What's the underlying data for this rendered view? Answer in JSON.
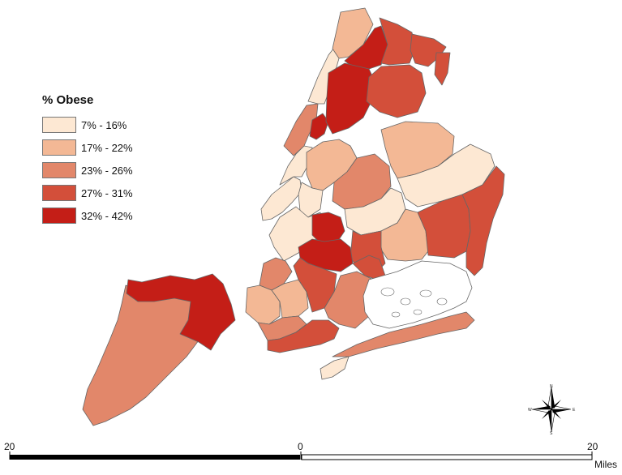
{
  "legend": {
    "title": "% Obese",
    "classes": [
      {
        "label": "7% - 16%",
        "color": "#fde8d3"
      },
      {
        "label": "17% - 22%",
        "color": "#f3b895"
      },
      {
        "label": "23% - 26%",
        "color": "#e2876a"
      },
      {
        "label": "27% - 31%",
        "color": "#d34f3a"
      },
      {
        "label": "32% - 42%",
        "color": "#c41e17"
      }
    ]
  },
  "scale_bar": {
    "left_label": "20",
    "mid_label": "0",
    "right_label": "20",
    "unit": "Miles"
  },
  "compass": {
    "n": "N",
    "s": "S",
    "e": "E",
    "w": "W"
  }
}
